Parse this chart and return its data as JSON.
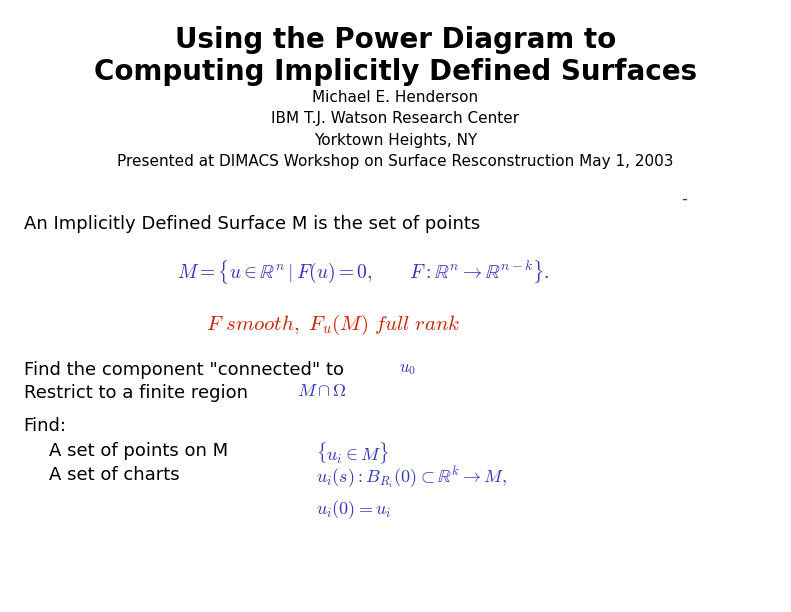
{
  "bg_color": "#ffffff",
  "title_line1": "Using the Power Diagram to",
  "title_line2": "Computing Implicitly Defined Surfaces",
  "subtitle_lines": [
    "Michael E. Henderson",
    "IBM T.J. Watson Research Center",
    "Yorktown Heights, NY",
    "Presented at DIMACS Workshop on Surface Resconstruction May 1, 2003"
  ],
  "title_fontsize": 20,
  "subtitle_fontsize": 11,
  "body_fontsize": 13,
  "math_fontsize": 13,
  "math_color_blue": "#3333bb",
  "math_color_red": "#cc2200",
  "dash_color": "#444444"
}
